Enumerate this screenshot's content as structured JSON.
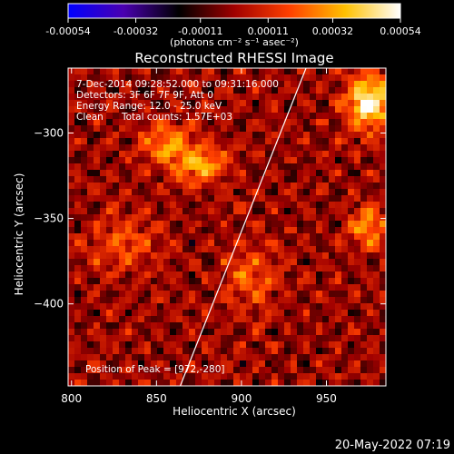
{
  "chart_data": {
    "type": "heatmap",
    "title": "Reconstructed RHESSI Image",
    "xlabel": "Heliocentric X (arcsec)",
    "ylabel": "Heliocentric Y (arcsec)",
    "xlim": [
      798,
      985
    ],
    "ylim": [
      -448,
      -262
    ],
    "x_ticks": [
      800,
      850,
      900,
      950
    ],
    "y_ticks": [
      -300,
      -350,
      -400
    ],
    "colorbar": {
      "range": [
        -0.00054,
        0.00054
      ],
      "ticks": [
        "-0.00054",
        "-0.00032",
        "-0.00011",
        "0.00011",
        "0.00032",
        "0.00054"
      ],
      "unit_label": "(photons cm⁻² s⁻¹ asec⁻²)",
      "colormap": [
        "#0000ff",
        "#4a00b0",
        "#000000",
        "#a00000",
        "#ff4000",
        "#ffc000",
        "#ffffff"
      ]
    },
    "annotations": {
      "time_range": "7-Dec-2014 09:28:52.000 to 09:31:16.000",
      "detectors": "Detectors: 3F 6F 7F 9F, Att 0",
      "energy_range": "Energy Range: 12.0 - 25.0 keV",
      "method": "Clean",
      "total_counts": "Total counts: 1.57E+03",
      "peak": "Position of Peak = [972,-280]"
    },
    "peak_position": [
      972,
      -280
    ],
    "limb_line": {
      "x": [
        864,
        938
      ],
      "y": [
        -448,
        -262
      ]
    },
    "intensity_sources": [
      {
        "x": 875,
        "y": -318,
        "amp": 0.00034,
        "sx": 12,
        "sy": 8
      },
      {
        "x": 855,
        "y": -305,
        "amp": 0.00026,
        "sx": 10,
        "sy": 9
      },
      {
        "x": 975,
        "y": -282,
        "amp": 0.00054,
        "sx": 9,
        "sy": 11
      },
      {
        "x": 975,
        "y": -355,
        "amp": 0.0003,
        "sx": 8,
        "sy": 8
      },
      {
        "x": 830,
        "y": -365,
        "amp": 0.00018,
        "sx": 14,
        "sy": 12
      },
      {
        "x": 905,
        "y": -385,
        "amp": 0.0002,
        "sx": 12,
        "sy": 14
      }
    ],
    "timestamp": "20-May-2022 07:19"
  }
}
